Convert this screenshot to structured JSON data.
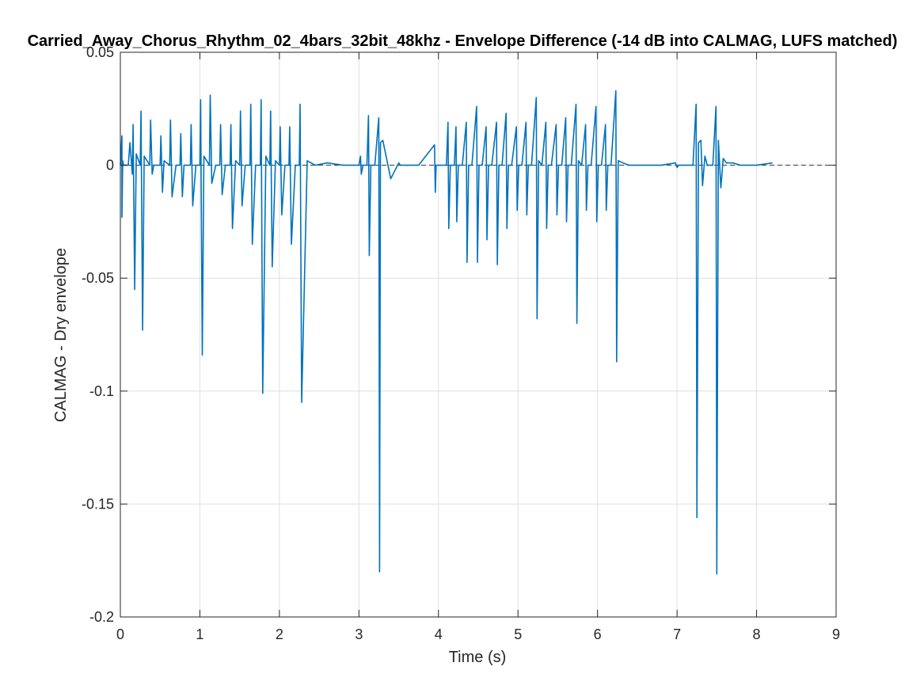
{
  "chart_data": {
    "type": "line",
    "title": "Carried_Away_Chorus_Rhythm_02_4bars_32bit_48khz - Envelope Difference (-14 dB into CALMAG, LUFS matched)",
    "xlabel": "Time (s)",
    "ylabel": "CALMAG - Dry envelope",
    "xlim": [
      0,
      9
    ],
    "ylim": [
      -0.2,
      0.05
    ],
    "x_ticks": [
      0,
      1,
      2,
      3,
      4,
      5,
      6,
      7,
      8,
      9
    ],
    "y_ticks": [
      -0.2,
      -0.15,
      -0.1,
      -0.05,
      0,
      0.05
    ],
    "x_tick_labels": [
      "0",
      "1",
      "2",
      "3",
      "4",
      "5",
      "6",
      "7",
      "8",
      "9"
    ],
    "y_tick_labels": [
      "-0.2",
      "-0.15",
      "-0.1",
      "-0.05",
      "0",
      "0.05"
    ],
    "grid": true,
    "zero_reference_line": {
      "y": 0,
      "style": "dashed",
      "color": "#333333"
    },
    "series_color": "#0072BD",
    "series": [
      {
        "x": [
          0.0,
          0.02,
          0.02,
          0.03,
          0.04,
          0.1,
          0.12,
          0.15,
          0.16,
          0.18,
          0.2,
          0.25,
          0.26,
          0.28,
          0.3,
          0.37,
          0.38,
          0.4,
          0.42,
          0.5,
          0.51,
          0.53,
          0.55,
          0.62,
          0.63,
          0.65,
          0.7,
          0.75,
          0.76,
          0.78,
          0.8,
          0.88,
          0.89,
          0.91,
          0.95,
          1.0,
          1.01,
          1.03,
          1.05,
          1.12,
          1.13,
          1.15,
          1.2,
          1.25,
          1.26,
          1.28,
          1.32,
          1.38,
          1.39,
          1.41,
          1.45,
          1.5,
          1.51,
          1.53,
          1.57,
          1.63,
          1.64,
          1.66,
          1.7,
          1.76,
          1.77,
          1.79,
          1.83,
          1.88,
          1.89,
          1.91,
          1.95,
          2.0,
          2.01,
          2.03,
          2.07,
          2.12,
          2.13,
          2.15,
          2.2,
          2.25,
          2.26,
          2.28,
          2.35,
          2.45,
          2.6,
          2.8,
          3.0,
          3.02,
          3.03,
          3.05,
          3.1,
          3.12,
          3.13,
          3.15,
          3.2,
          3.25,
          3.26,
          3.27,
          3.3,
          3.4,
          3.5,
          3.52,
          3.6,
          3.75,
          3.95,
          3.96,
          3.97,
          4.1,
          4.12,
          4.13,
          4.15,
          4.2,
          4.22,
          4.23,
          4.25,
          4.3,
          4.35,
          4.36,
          4.38,
          4.42,
          4.48,
          4.49,
          4.51,
          4.55,
          4.6,
          4.61,
          4.63,
          4.67,
          4.73,
          4.74,
          4.76,
          4.8,
          4.85,
          4.86,
          4.88,
          4.92,
          4.98,
          4.99,
          5.01,
          5.05,
          5.1,
          5.11,
          5.13,
          5.17,
          5.23,
          5.24,
          5.26,
          5.3,
          5.35,
          5.36,
          5.38,
          5.42,
          5.48,
          5.49,
          5.51,
          5.55,
          5.6,
          5.61,
          5.63,
          5.67,
          5.73,
          5.74,
          5.76,
          5.8,
          5.85,
          5.86,
          5.88,
          5.92,
          5.98,
          5.99,
          6.01,
          6.05,
          6.1,
          6.11,
          6.13,
          6.17,
          6.23,
          6.24,
          6.26,
          6.32,
          6.4,
          6.55,
          6.8,
          6.98,
          7.0,
          7.02,
          7.2,
          7.24,
          7.25,
          7.27,
          7.3,
          7.32,
          7.35,
          7.38,
          7.45,
          7.49,
          7.5,
          7.52,
          7.55,
          7.58,
          7.62,
          7.7,
          7.8,
          8.0,
          8.2
        ],
        "y": [
          0.0,
          0.013,
          -0.023,
          0.002,
          0.0,
          0.0,
          0.01,
          -0.004,
          0.018,
          -0.055,
          0.005,
          0.0,
          0.024,
          -0.073,
          0.004,
          0.0,
          0.02,
          -0.004,
          0.0,
          0.0,
          0.013,
          -0.012,
          0.002,
          0.0,
          0.02,
          -0.014,
          0.0,
          0.0,
          0.014,
          -0.014,
          0.0,
          0.0,
          0.018,
          -0.018,
          0.0,
          0.0,
          0.029,
          -0.084,
          0.004,
          0.0,
          0.031,
          -0.008,
          0.0,
          0.0,
          0.018,
          -0.013,
          0.0,
          0.0,
          0.018,
          -0.028,
          0.002,
          0.0,
          0.024,
          -0.018,
          0.0,
          0.0,
          0.027,
          -0.035,
          0.0,
          0.0,
          0.029,
          -0.101,
          0.004,
          0.0,
          0.024,
          -0.045,
          0.002,
          0.0,
          0.017,
          -0.022,
          0.0,
          0.0,
          0.017,
          -0.035,
          0.0,
          0.0,
          0.027,
          -0.105,
          0.002,
          0.0,
          0.001,
          0.0,
          0.0,
          0.004,
          -0.004,
          0.0,
          0.0,
          0.022,
          -0.04,
          0.0,
          0.0,
          0.021,
          -0.18,
          0.01,
          0.011,
          -0.006,
          0.001,
          0.0,
          0.0,
          0.0,
          0.009,
          -0.012,
          0.0,
          0.0,
          0.019,
          -0.028,
          0.0,
          0.0,
          0.017,
          -0.025,
          0.0,
          0.0,
          0.019,
          -0.043,
          0.0,
          0.0,
          0.026,
          -0.043,
          0.0,
          0.0,
          0.017,
          -0.033,
          0.0,
          0.0,
          0.019,
          -0.044,
          0.0,
          0.0,
          0.023,
          -0.028,
          0.0,
          0.0,
          0.017,
          -0.02,
          0.0,
          0.0,
          0.019,
          -0.022,
          0.0,
          0.0,
          0.03,
          -0.068,
          0.002,
          0.0,
          0.019,
          -0.028,
          0.0,
          0.0,
          0.018,
          -0.022,
          0.0,
          0.0,
          0.021,
          -0.025,
          0.0,
          0.0,
          0.027,
          -0.07,
          0.002,
          0.0,
          0.018,
          -0.02,
          0.0,
          0.0,
          0.026,
          -0.025,
          0.0,
          0.0,
          0.018,
          -0.02,
          0.0,
          0.0,
          0.033,
          -0.087,
          0.002,
          0.001,
          0.0,
          0.0,
          0.0,
          0.001,
          -0.001,
          0.0,
          0.0,
          0.027,
          -0.156,
          0.01,
          0.011,
          -0.009,
          0.004,
          0.0,
          0.0,
          0.026,
          -0.181,
          0.011,
          -0.01,
          0.003,
          0.001,
          0.001,
          0.0,
          0.0,
          0.001
        ]
      }
    ]
  }
}
